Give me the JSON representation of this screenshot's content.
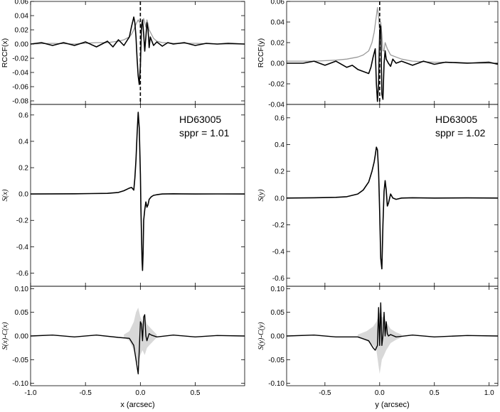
{
  "chart_data": [
    {
      "id": "rccf_x",
      "type": "line",
      "ylabel": "RCCF(x)",
      "xlim": [
        -1.0,
        0.95
      ],
      "ylim": [
        -0.085,
        0.06
      ],
      "yticks": [
        "0.06",
        "0.04",
        "0.02",
        "0.00",
        "-0.02",
        "-0.04",
        "-0.06",
        "-0.08"
      ],
      "ytick_values": [
        0.06,
        0.04,
        0.02,
        0.0,
        -0.02,
        -0.04,
        -0.06,
        -0.08
      ],
      "dashed_vline_x": 0.0,
      "series": [
        {
          "color": "#9a9a9a",
          "width": 1.3,
          "x": [
            -1.0,
            -0.8,
            -0.6,
            -0.4,
            -0.3,
            -0.2,
            -0.15,
            -0.1,
            -0.08,
            -0.06,
            -0.04,
            -0.02,
            0.0,
            0.01,
            0.02,
            0.03,
            0.04,
            0.05,
            0.06,
            0.07,
            0.08,
            0.1,
            0.12,
            0.15,
            0.2,
            0.3,
            0.5,
            0.7,
            0.95
          ],
          "y": [
            0.0,
            0.001,
            0.0,
            0.002,
            0.002,
            0.004,
            0.006,
            0.01,
            0.014,
            0.02,
            0.028,
            0.034,
            0.028,
            0.02,
            0.03,
            0.036,
            0.03,
            0.024,
            0.034,
            0.028,
            0.02,
            0.014,
            0.008,
            0.004,
            0.002,
            0.001,
            0.001,
            0.0,
            0.0
          ]
        },
        {
          "color": "#000000",
          "width": 1.6,
          "x": [
            -1.0,
            -0.9,
            -0.8,
            -0.7,
            -0.6,
            -0.5,
            -0.4,
            -0.3,
            -0.25,
            -0.2,
            -0.15,
            -0.1,
            -0.08,
            -0.06,
            -0.05,
            -0.04,
            -0.03,
            -0.02,
            -0.01,
            0.0,
            0.01,
            0.02,
            0.03,
            0.04,
            0.05,
            0.06,
            0.07,
            0.08,
            0.09,
            0.1,
            0.12,
            0.15,
            0.2,
            0.25,
            0.3,
            0.4,
            0.5,
            0.6,
            0.7,
            0.8,
            0.95
          ],
          "y": [
            0.0,
            0.002,
            -0.002,
            0.002,
            -0.002,
            0.003,
            -0.004,
            0.004,
            -0.004,
            0.006,
            -0.002,
            0.01,
            0.025,
            0.038,
            0.03,
            0.01,
            -0.02,
            -0.045,
            -0.057,
            -0.03,
            0.025,
            0.034,
            0.014,
            -0.01,
            0.01,
            0.03,
            0.02,
            -0.005,
            0.01,
            0.006,
            -0.002,
            0.003,
            -0.003,
            0.002,
            0.0,
            0.002,
            -0.002,
            0.001,
            0.0,
            0.001,
            0.0
          ]
        }
      ]
    },
    {
      "id": "rccf_y",
      "type": "line",
      "ylabel": "RCCF(y)",
      "xlim": [
        -0.85,
        1.08
      ],
      "ylim": [
        -0.04,
        0.06
      ],
      "yticks": [
        "0.06",
        "0.04",
        "0.02",
        "0.00",
        "-0.02",
        "-0.04"
      ],
      "ytick_values": [
        0.06,
        0.04,
        0.02,
        0.0,
        -0.02,
        -0.04
      ],
      "dashed_vline_x": 0.0,
      "series": [
        {
          "color": "#9a9a9a",
          "width": 1.3,
          "x": [
            -0.85,
            -0.6,
            -0.4,
            -0.3,
            -0.2,
            -0.15,
            -0.1,
            -0.07,
            -0.05,
            -0.03,
            -0.02,
            -0.01,
            0.0,
            0.01,
            0.02,
            0.03,
            0.04,
            0.05,
            0.07,
            0.1,
            0.15,
            0.2,
            0.3,
            0.5,
            0.7,
            0.9,
            1.08
          ],
          "y": [
            0.002,
            0.002,
            0.003,
            0.004,
            0.006,
            0.008,
            0.012,
            0.02,
            0.03,
            0.046,
            0.054,
            0.045,
            0.03,
            0.04,
            0.028,
            0.012,
            0.012,
            0.02,
            0.014,
            0.008,
            0.006,
            0.004,
            0.002,
            0.001,
            0.001,
            0.0,
            0.0
          ]
        },
        {
          "color": "#000000",
          "width": 1.6,
          "x": [
            -0.85,
            -0.7,
            -0.6,
            -0.5,
            -0.4,
            -0.3,
            -0.25,
            -0.2,
            -0.15,
            -0.1,
            -0.08,
            -0.06,
            -0.04,
            -0.03,
            -0.02,
            -0.01,
            0.0,
            0.01,
            0.02,
            0.03,
            0.04,
            0.05,
            0.06,
            0.08,
            0.1,
            0.12,
            0.15,
            0.2,
            0.3,
            0.4,
            0.5,
            0.6,
            0.8,
            1.0,
            1.08
          ],
          "y": [
            0.0,
            0.0,
            0.002,
            -0.002,
            0.002,
            -0.004,
            -0.002,
            -0.006,
            -0.008,
            -0.01,
            -0.004,
            0.006,
            0.014,
            -0.02,
            -0.037,
            -0.02,
            0.03,
            0.036,
            -0.03,
            -0.035,
            0.0,
            0.012,
            0.004,
            0.0,
            -0.003,
            0.004,
            0.0,
            0.002,
            -0.002,
            0.002,
            -0.001,
            0.001,
            0.0,
            0.001,
            -0.001
          ]
        }
      ]
    },
    {
      "id": "s_x",
      "type": "line",
      "ylabel": "S(x)",
      "annotation_lines": [
        "HD63005",
        "sppr = 1.01"
      ],
      "xlim": [
        -1.0,
        0.95
      ],
      "ylim": [
        -0.7,
        0.68
      ],
      "yticks": [
        "0.6",
        "0.4",
        "0.2",
        "0.0",
        "-0.2",
        "-0.4",
        "-0.6"
      ],
      "ytick_values": [
        0.6,
        0.4,
        0.2,
        0.0,
        -0.2,
        -0.4,
        -0.6
      ],
      "series": [
        {
          "color": "#000000",
          "width": 1.6,
          "x": [
            -1.0,
            -0.6,
            -0.3,
            -0.2,
            -0.15,
            -0.1,
            -0.08,
            -0.06,
            -0.05,
            -0.04,
            -0.03,
            -0.02,
            -0.01,
            0.0,
            0.005,
            0.01,
            0.015,
            0.02,
            0.025,
            0.03,
            0.04,
            0.05,
            0.06,
            0.07,
            0.08,
            0.1,
            0.12,
            0.15,
            0.2,
            0.3,
            0.5,
            0.7,
            0.95
          ],
          "y": [
            0.0,
            0.002,
            0.005,
            0.012,
            0.025,
            0.045,
            0.05,
            0.03,
            0.12,
            0.26,
            0.45,
            0.62,
            0.5,
            0.15,
            -0.1,
            -0.3,
            -0.5,
            -0.58,
            -0.45,
            -0.2,
            -0.12,
            -0.06,
            -0.1,
            -0.08,
            -0.04,
            -0.02,
            -0.01,
            -0.005,
            0.0,
            0.002,
            0.0,
            0.001,
            0.0
          ]
        }
      ]
    },
    {
      "id": "s_y",
      "type": "line",
      "ylabel": "S(y)",
      "annotation_lines": [
        "HD63005",
        "sppr = 1.02"
      ],
      "xlim": [
        -0.85,
        1.08
      ],
      "ylim": [
        -0.66,
        0.7
      ],
      "yticks": [
        "0.6",
        "0.4",
        "0.2",
        "0.0",
        "-0.2",
        "-0.4",
        "-0.6"
      ],
      "ytick_values": [
        0.6,
        0.4,
        0.2,
        0.0,
        -0.2,
        -0.4,
        -0.6
      ],
      "series": [
        {
          "color": "#000000",
          "width": 1.6,
          "x": [
            -0.85,
            -0.6,
            -0.4,
            -0.3,
            -0.2,
            -0.15,
            -0.1,
            -0.07,
            -0.05,
            -0.04,
            -0.03,
            -0.02,
            -0.01,
            0.0,
            0.01,
            0.02,
            0.03,
            0.04,
            0.05,
            0.06,
            0.07,
            0.08,
            0.1,
            0.12,
            0.15,
            0.2,
            0.3,
            0.5,
            0.8,
            1.08
          ],
          "y": [
            0.0,
            0.002,
            0.005,
            0.01,
            0.03,
            0.06,
            0.12,
            0.2,
            0.27,
            0.32,
            0.38,
            0.36,
            0.2,
            -0.1,
            -0.45,
            -0.53,
            -0.2,
            0.05,
            0.13,
            0.06,
            -0.06,
            -0.04,
            0.03,
            0.0,
            -0.01,
            0.0,
            0.002,
            0.0,
            0.001,
            0.0
          ]
        }
      ]
    },
    {
      "id": "diff_x",
      "type": "area",
      "ylabel": "S(x)-C(x)",
      "xlabel": "x (arcsec)",
      "xlim": [
        -1.0,
        0.95
      ],
      "ylim": [
        -0.105,
        0.105
      ],
      "yticks": [
        "0.10",
        "0.05",
        "0.00",
        "-0.05",
        "-0.10"
      ],
      "ytick_values": [
        0.1,
        0.05,
        0.0,
        -0.05,
        -0.1
      ],
      "xticks": [
        "-1.0",
        "-0.5",
        "0.0",
        "0.5"
      ],
      "xtick_values": [
        -1.0,
        -0.5,
        0.0,
        0.5
      ],
      "band": {
        "color": "#d8d8d8",
        "x": [
          -0.15,
          -0.1,
          -0.06,
          -0.04,
          -0.02,
          0.0,
          0.02,
          0.04,
          0.06,
          0.08,
          0.12,
          0.15
        ],
        "upper": [
          0.003,
          0.01,
          0.03,
          0.05,
          0.06,
          0.04,
          0.03,
          0.04,
          0.025,
          0.02,
          0.01,
          0.003
        ],
        "lower": [
          -0.003,
          -0.01,
          -0.03,
          -0.05,
          -0.06,
          -0.04,
          -0.03,
          -0.04,
          -0.025,
          -0.02,
          -0.01,
          -0.003
        ]
      },
      "series": [
        {
          "color": "#000000",
          "width": 1.4,
          "x": [
            -1.0,
            -0.8,
            -0.6,
            -0.4,
            -0.2,
            -0.1,
            -0.06,
            -0.04,
            -0.02,
            -0.01,
            0.0,
            0.01,
            0.02,
            0.03,
            0.04,
            0.05,
            0.06,
            0.08,
            0.1,
            0.15,
            0.3,
            0.5,
            0.7,
            0.95
          ],
          "y": [
            0.0,
            0.002,
            -0.002,
            0.002,
            -0.003,
            -0.005,
            -0.02,
            -0.05,
            -0.08,
            -0.03,
            0.03,
            0.025,
            -0.01,
            0.04,
            0.045,
            0.0,
            -0.01,
            0.005,
            0.002,
            -0.002,
            0.002,
            -0.002,
            0.001,
            0.0
          ]
        }
      ]
    },
    {
      "id": "diff_y",
      "type": "area",
      "ylabel": "S(y)-C(y)",
      "xlabel": "y (arcsec)",
      "xlim": [
        -0.85,
        1.08
      ],
      "ylim": [
        -0.105,
        0.105
      ],
      "yticks": [
        "0.10",
        "0.05",
        "0.00",
        "-0.05",
        "-0.10"
      ],
      "ytick_values": [
        0.1,
        0.05,
        0.0,
        -0.05,
        -0.1
      ],
      "xticks": [
        "-0.5",
        "0.0",
        "0.5",
        "1.0"
      ],
      "xtick_values": [
        -0.5,
        0.0,
        0.5,
        1.0
      ],
      "band": {
        "color": "#d8d8d8",
        "x": [
          -0.2,
          -0.12,
          -0.06,
          -0.03,
          0.0,
          0.02,
          0.04,
          0.06,
          0.1,
          0.15,
          0.2
        ],
        "upper": [
          0.003,
          0.01,
          0.02,
          0.03,
          0.05,
          0.04,
          0.04,
          0.03,
          0.015,
          0.008,
          0.003
        ],
        "lower": [
          -0.003,
          -0.01,
          -0.02,
          -0.03,
          -0.08,
          -0.05,
          -0.04,
          -0.03,
          -0.015,
          -0.008,
          -0.003
        ]
      },
      "series": [
        {
          "color": "#000000",
          "width": 1.4,
          "x": [
            -0.85,
            -0.6,
            -0.4,
            -0.2,
            -0.1,
            -0.06,
            -0.04,
            -0.02,
            -0.01,
            0.0,
            0.01,
            0.02,
            0.03,
            0.04,
            0.05,
            0.06,
            0.07,
            0.08,
            0.1,
            0.15,
            0.3,
            0.5,
            0.8,
            1.08
          ],
          "y": [
            0.0,
            0.002,
            -0.002,
            -0.002,
            -0.01,
            -0.025,
            -0.03,
            -0.02,
            0.06,
            -0.02,
            0.07,
            -0.02,
            0.0,
            0.05,
            0.0,
            0.03,
            0.005,
            0.0,
            0.003,
            -0.002,
            0.002,
            -0.002,
            0.001,
            0.0
          ]
        }
      ]
    }
  ]
}
